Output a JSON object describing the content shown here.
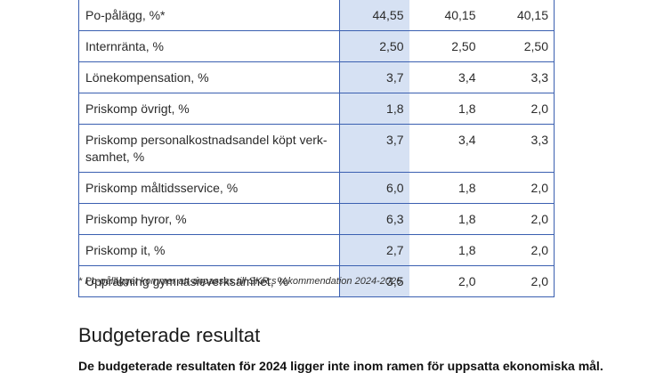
{
  "table": {
    "rows": [
      {
        "label": "Po-pålägg, %*",
        "v1": "44,55",
        "v2": "40,15",
        "v3": "40,15"
      },
      {
        "label": "Internränta, %",
        "v1": "2,50",
        "v2": "2,50",
        "v3": "2,50"
      },
      {
        "label": "Lönekompensation, %",
        "v1": "3,7",
        "v2": "3,4",
        "v3": "3,3"
      },
      {
        "label": "Priskomp övrigt, %",
        "v1": "1,8",
        "v2": "1,8",
        "v3": "2,0"
      },
      {
        "label": "Priskomp personalkostnadsandel köpt verk-samhet, %",
        "v1": "3,7",
        "v2": "3,4",
        "v3": "3,3"
      },
      {
        "label": "Priskomp måltidsservice, %",
        "v1": "6,0",
        "v2": "1,8",
        "v3": "2,0"
      },
      {
        "label": "Priskomp hyror, %",
        "v1": "6,3",
        "v2": "1,8",
        "v3": "2,0"
      },
      {
        "label": "Priskomp it, %",
        "v1": "2,7",
        "v2": "1,8",
        "v3": "2,0"
      },
      {
        "label": "Uppräkning gymnasieverksamhet, %",
        "v1": "3,5",
        "v2": "2,0",
        "v3": "2,0"
      }
    ]
  },
  "footnote": "* Po-pålägget kommer att anpassas till SKR:s rekommendation 2024-2026.",
  "section": {
    "heading": "Budgeterade resultat",
    "lead": "De budgeterade resultaten för 2024 ligger inte inom ramen för uppsatta ekonomiska mål."
  },
  "colors": {
    "table_border": "#3a5fb0",
    "highlight_column": "#d6e1f3"
  }
}
